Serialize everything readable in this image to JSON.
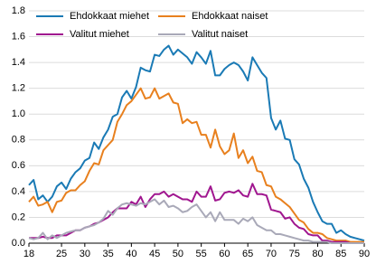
{
  "chart_data": {
    "type": "line",
    "x": [
      18,
      19,
      20,
      21,
      22,
      23,
      24,
      25,
      26,
      27,
      28,
      29,
      30,
      31,
      32,
      33,
      34,
      35,
      36,
      37,
      38,
      39,
      40,
      41,
      42,
      43,
      44,
      45,
      46,
      47,
      48,
      49,
      50,
      51,
      52,
      53,
      54,
      55,
      56,
      57,
      58,
      59,
      60,
      61,
      62,
      63,
      64,
      65,
      66,
      67,
      68,
      69,
      70,
      71,
      72,
      73,
      74,
      75,
      76,
      77,
      78,
      79,
      80,
      81,
      82,
      83,
      84,
      85,
      86,
      87,
      88,
      89,
      90
    ],
    "series": [
      {
        "name": "Ehdokkaat miehet",
        "color": "#1a7ab5",
        "values": [
          0.45,
          0.49,
          0.34,
          0.37,
          0.32,
          0.36,
          0.44,
          0.47,
          0.42,
          0.5,
          0.55,
          0.58,
          0.64,
          0.66,
          0.78,
          0.73,
          0.82,
          0.88,
          0.98,
          1.0,
          1.13,
          1.18,
          1.12,
          1.21,
          1.36,
          1.34,
          1.33,
          1.46,
          1.45,
          1.5,
          1.53,
          1.46,
          1.5,
          1.47,
          1.44,
          1.39,
          1.48,
          1.44,
          1.39,
          1.49,
          1.3,
          1.3,
          1.35,
          1.38,
          1.4,
          1.38,
          1.33,
          1.26,
          1.44,
          1.38,
          1.32,
          1.28,
          0.97,
          0.88,
          0.95,
          0.81,
          0.8,
          0.65,
          0.61,
          0.5,
          0.43,
          0.32,
          0.24,
          0.17,
          0.15,
          0.15,
          0.08,
          0.1,
          0.07,
          0.05,
          0.04,
          0.03,
          0.02
        ]
      },
      {
        "name": "Ehdokkaat naiset",
        "color": "#e8801e",
        "values": [
          0.32,
          0.36,
          0.29,
          0.3,
          0.32,
          0.24,
          0.32,
          0.33,
          0.39,
          0.41,
          0.41,
          0.45,
          0.48,
          0.56,
          0.62,
          0.61,
          0.72,
          0.76,
          0.8,
          0.94,
          1.0,
          1.07,
          1.1,
          1.15,
          1.2,
          1.12,
          1.13,
          1.2,
          1.12,
          1.14,
          1.16,
          1.09,
          1.08,
          0.93,
          0.96,
          0.93,
          0.94,
          0.84,
          0.84,
          0.74,
          0.88,
          0.75,
          0.69,
          0.72,
          0.85,
          0.66,
          0.72,
          0.62,
          0.67,
          0.56,
          0.55,
          0.45,
          0.44,
          0.36,
          0.34,
          0.31,
          0.28,
          0.23,
          0.18,
          0.16,
          0.11,
          0.08,
          0.08,
          0.07,
          0.04,
          0.03,
          0.02,
          0.02,
          0.02,
          0.01,
          0.01,
          0.01,
          0.01
        ]
      },
      {
        "name": "Valitut miehet",
        "color": "#a0168f",
        "values": [
          0.04,
          0.04,
          0.04,
          0.05,
          0.04,
          0.04,
          0.06,
          0.06,
          0.06,
          0.08,
          0.1,
          0.1,
          0.12,
          0.13,
          0.15,
          0.16,
          0.18,
          0.2,
          0.24,
          0.27,
          0.27,
          0.27,
          0.32,
          0.3,
          0.36,
          0.28,
          0.34,
          0.38,
          0.38,
          0.4,
          0.36,
          0.38,
          0.36,
          0.34,
          0.34,
          0.32,
          0.4,
          0.36,
          0.36,
          0.44,
          0.33,
          0.34,
          0.39,
          0.4,
          0.39,
          0.41,
          0.37,
          0.36,
          0.46,
          0.38,
          0.38,
          0.37,
          0.26,
          0.25,
          0.24,
          0.19,
          0.2,
          0.15,
          0.12,
          0.11,
          0.07,
          0.06,
          0.06,
          0.02,
          0.02,
          0.01,
          0.01,
          0.01,
          0.01,
          0,
          0,
          0,
          0
        ]
      },
      {
        "name": "Valitut naiset",
        "color": "#a9a9b8",
        "values": [
          0.04,
          0.03,
          0.04,
          0.08,
          0.03,
          0.06,
          0.04,
          0.06,
          0.08,
          0.09,
          0.1,
          0.1,
          0.12,
          0.13,
          0.14,
          0.16,
          0.19,
          0.25,
          0.22,
          0.27,
          0.3,
          0.31,
          0.3,
          0.29,
          0.31,
          0.3,
          0.32,
          0.34,
          0.3,
          0.33,
          0.28,
          0.29,
          0.27,
          0.24,
          0.25,
          0.28,
          0.3,
          0.25,
          0.2,
          0.24,
          0.17,
          0.24,
          0.18,
          0.18,
          0.18,
          0.15,
          0.19,
          0.17,
          0.2,
          0.14,
          0.12,
          0.1,
          0.1,
          0.07,
          0.07,
          0.06,
          0.05,
          0.04,
          0.03,
          0.02,
          0.02,
          0.01,
          0.01,
          0.01,
          0.01,
          0,
          0,
          0,
          0,
          0,
          0,
          0,
          0
        ]
      }
    ],
    "xlim": [
      18,
      90
    ],
    "xticks": [
      18,
      25,
      30,
      35,
      40,
      45,
      50,
      55,
      60,
      65,
      70,
      75,
      80,
      85,
      90
    ],
    "ylim": [
      0,
      1.8
    ],
    "yticks": [
      {
        "value": 0,
        "label": "0.0"
      },
      0.2,
      0.4,
      0.6,
      0.8,
      {
        "value": 1,
        "label": "1.0"
      },
      1.2,
      1.4,
      1.6,
      1.8
    ],
    "grid": true
  }
}
